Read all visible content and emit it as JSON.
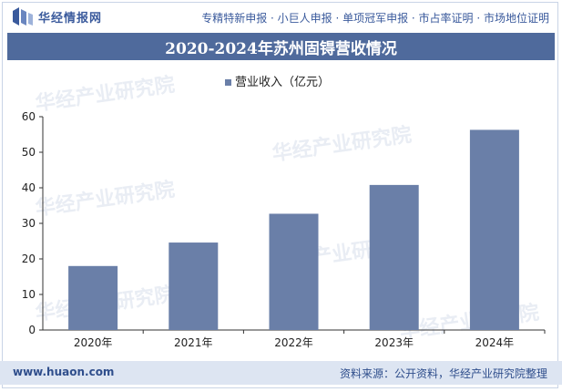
{
  "header": {
    "logo_text": "华经情报网",
    "links": "专精特新申报 · 小巨人申报 · 单项冠军申报 · 市占率证明 · 市场地位证明"
  },
  "title": "2020-2024年苏州固锝营收情况",
  "footer": {
    "website": "www.huaon.com",
    "source": "资料来源：公开资料，华经产业研究院整理"
  },
  "watermark": "华经产业研究院",
  "colors": {
    "bar": "#6a7fa8",
    "title_bg": "#4f6a9c",
    "accent": "#3a5a9c"
  },
  "chart_data": {
    "type": "bar",
    "categories": [
      "2020年",
      "2021年",
      "2022年",
      "2023年",
      "2024年"
    ],
    "series": [
      {
        "name": "营业收入（亿元）",
        "values": [
          18.0,
          24.6,
          32.7,
          40.8,
          56.3
        ]
      }
    ],
    "ylim": [
      0,
      60
    ],
    "yticks": [
      0,
      10,
      20,
      30,
      40,
      50,
      60
    ],
    "legend_position": "top-center",
    "grid": false
  }
}
